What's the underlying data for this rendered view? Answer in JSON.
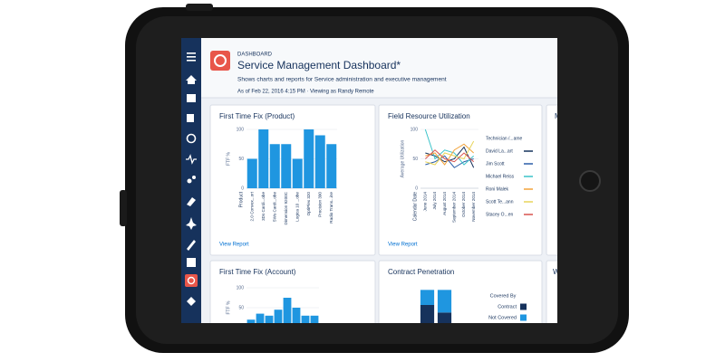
{
  "header": {
    "label": "DASHBOARD",
    "title": "Service Management Dashboard*",
    "description": "Shows charts and reports for Service administration and executive management",
    "as_of": "As of Feb 22, 2016 4:15 PM · Viewing as Randy Remote"
  },
  "clipped_titles": [
    "M",
    "W"
  ],
  "chart_data": [
    {
      "type": "bar",
      "title": "First Time Fix (Product)",
      "ylabel": "FTF %",
      "xlabel": "Product",
      "categories": [
        "2.0 Convex...ort",
        "3Ds Cardi...obe",
        "5Ws Cardi...obe",
        "Dimension 9200C",
        "Logica 10 ...obe",
        "OptiPlex 320",
        "Precision 390",
        "Radio Trans...ine"
      ],
      "values": [
        50,
        100,
        75,
        75,
        50,
        100,
        90,
        75
      ],
      "color": "#1f96e0",
      "ylim": [
        0,
        100
      ],
      "yticks": [
        0,
        50,
        100
      ],
      "link": "View Report"
    },
    {
      "type": "line",
      "title": "Field Resource Utilization",
      "ylabel": "Average Utilization",
      "xlabel": "Calendar Date",
      "legend_title": "Technician /...ame",
      "categories": [
        "June 2014",
        "July 2014",
        "August 2014",
        "September 2014",
        "October 2014",
        "November 2014"
      ],
      "series": [
        {
          "name": "David La...art",
          "color": "#16325c",
          "values": [
            60,
            55,
            45,
            50,
            70,
            35
          ]
        },
        {
          "name": "Jim Scott",
          "color": "#2a5ea8",
          "values": [
            40,
            45,
            55,
            35,
            45,
            50
          ]
        },
        {
          "name": "Michael Reiss",
          "color": "#3bc3c9",
          "values": [
            100,
            50,
            65,
            60,
            40,
            55
          ]
        },
        {
          "name": "Roni Malek",
          "color": "#f2a33a",
          "values": [
            55,
            60,
            40,
            65,
            75,
            60
          ]
        },
        {
          "name": "Scott Te...ann",
          "color": "#e8d45a",
          "values": [
            45,
            40,
            60,
            55,
            50,
            80
          ]
        },
        {
          "name": "Stacey O...en",
          "color": "#d9534f",
          "values": [
            50,
            65,
            50,
            45,
            60,
            45
          ]
        }
      ],
      "ylim": [
        0,
        100
      ],
      "yticks": [
        0,
        50,
        100
      ],
      "link": "View Report"
    },
    {
      "type": "bar",
      "title": "First Time Fix (Account)",
      "ylabel": "FTF %",
      "values": [
        20,
        35,
        30,
        45,
        75,
        50,
        30,
        30
      ],
      "color": "#1f96e0",
      "ylim": [
        0,
        100
      ],
      "yticks": [
        50,
        100
      ]
    },
    {
      "type": "stacked_bar",
      "title": "Contract Penetration",
      "legend_title": "Covered By",
      "series": [
        {
          "name": "Contract",
          "color": "#16325c",
          "values": [
            3,
            2
          ]
        },
        {
          "name": "Not Covered",
          "color": "#1f96e0",
          "values": [
            2,
            3
          ]
        }
      ],
      "ylim": [
        0,
        6
      ]
    }
  ]
}
